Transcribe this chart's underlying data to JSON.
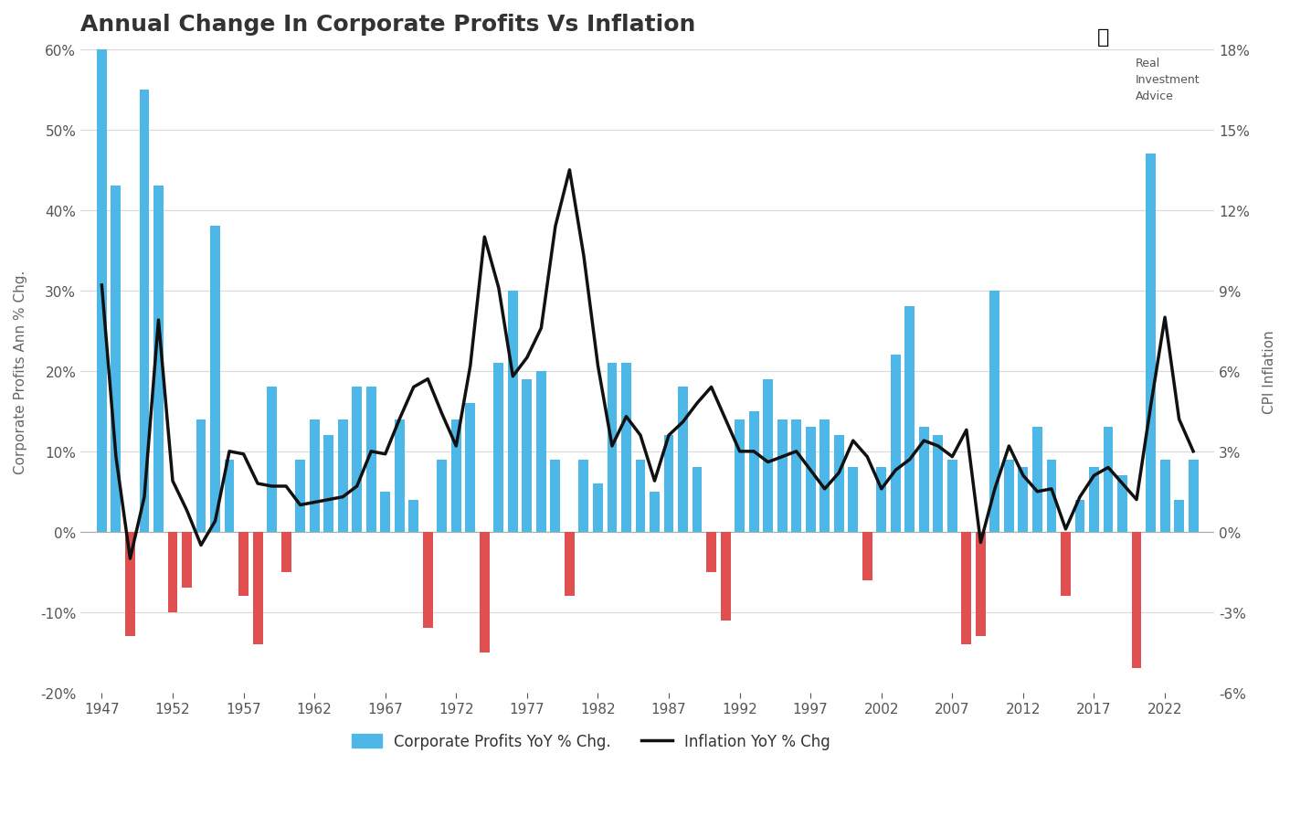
{
  "title": "Annual Change In Corporate Profits Vs Inflation",
  "ylabel_left": "Corporate Profits Ann % Chg.",
  "ylabel_right": "CPI Inflation",
  "legend_bar": "Corporate Profits YoY % Chg.",
  "legend_line": "Inflation YoY % Chg",
  "bar_color_pos": "#4db8e8",
  "bar_color_neg": "#e05050",
  "line_color": "#111111",
  "background_color": "#ffffff",
  "ylim_left": [
    -0.2,
    0.6
  ],
  "ylim_right": [
    -0.06,
    0.18
  ],
  "yticks_left": [
    -0.2,
    -0.1,
    0.0,
    0.1,
    0.2,
    0.3,
    0.4,
    0.5,
    0.6
  ],
  "yticks_right": [
    -0.06,
    -0.03,
    0.0,
    0.03,
    0.06,
    0.09,
    0.12,
    0.15,
    0.18
  ],
  "years": [
    1947,
    1948,
    1949,
    1950,
    1951,
    1952,
    1953,
    1954,
    1955,
    1956,
    1957,
    1958,
    1959,
    1960,
    1961,
    1962,
    1963,
    1964,
    1965,
    1966,
    1967,
    1968,
    1969,
    1970,
    1971,
    1972,
    1973,
    1974,
    1975,
    1976,
    1977,
    1978,
    1979,
    1980,
    1981,
    1982,
    1983,
    1984,
    1985,
    1986,
    1987,
    1988,
    1989,
    1990,
    1991,
    1992,
    1993,
    1994,
    1995,
    1996,
    1997,
    1998,
    1999,
    2000,
    2001,
    2002,
    2003,
    2004,
    2005,
    2006,
    2007,
    2008,
    2009,
    2010,
    2011,
    2012,
    2013,
    2014,
    2015,
    2016,
    2017,
    2018,
    2019,
    2020,
    2021,
    2022,
    2023,
    2024
  ],
  "profits_yoy": [
    0.6,
    0.43,
    -0.13,
    0.55,
    0.43,
    -0.1,
    -0.07,
    0.14,
    0.38,
    0.09,
    -0.08,
    -0.14,
    0.18,
    -0.05,
    0.09,
    0.14,
    0.12,
    0.14,
    0.18,
    0.18,
    0.05,
    0.14,
    0.04,
    -0.12,
    0.09,
    0.14,
    0.16,
    -0.15,
    0.21,
    0.3,
    0.19,
    0.2,
    0.09,
    -0.08,
    0.09,
    0.06,
    0.21,
    0.21,
    0.09,
    0.05,
    0.12,
    0.18,
    0.08,
    -0.05,
    -0.11,
    0.14,
    0.15,
    0.19,
    0.14,
    0.14,
    0.13,
    0.14,
    0.12,
    0.08,
    -0.06,
    0.08,
    0.22,
    0.28,
    0.13,
    0.12,
    0.09,
    -0.14,
    -0.13,
    0.3,
    0.09,
    0.08,
    0.13,
    0.09,
    -0.08,
    0.04,
    0.08,
    0.13,
    0.07,
    -0.17,
    0.47,
    0.09,
    0.04,
    0.09
  ],
  "cpi_yoy": [
    0.092,
    0.028,
    -0.01,
    0.013,
    0.079,
    0.019,
    0.008,
    -0.005,
    0.004,
    0.03,
    0.029,
    0.018,
    0.017,
    0.017,
    0.01,
    0.011,
    0.012,
    0.013,
    0.017,
    0.03,
    0.029,
    0.042,
    0.054,
    0.057,
    0.044,
    0.032,
    0.062,
    0.11,
    0.091,
    0.058,
    0.065,
    0.076,
    0.114,
    0.135,
    0.103,
    0.062,
    0.032,
    0.043,
    0.036,
    0.019,
    0.036,
    0.041,
    0.048,
    0.054,
    0.042,
    0.03,
    0.03,
    0.026,
    0.028,
    0.03,
    0.023,
    0.016,
    0.022,
    0.034,
    0.028,
    0.016,
    0.023,
    0.027,
    0.034,
    0.032,
    0.028,
    0.038,
    -0.004,
    0.016,
    0.032,
    0.021,
    0.015,
    0.016,
    0.001,
    0.013,
    0.021,
    0.024,
    0.018,
    0.012,
    0.047,
    0.08,
    0.042,
    0.03
  ]
}
